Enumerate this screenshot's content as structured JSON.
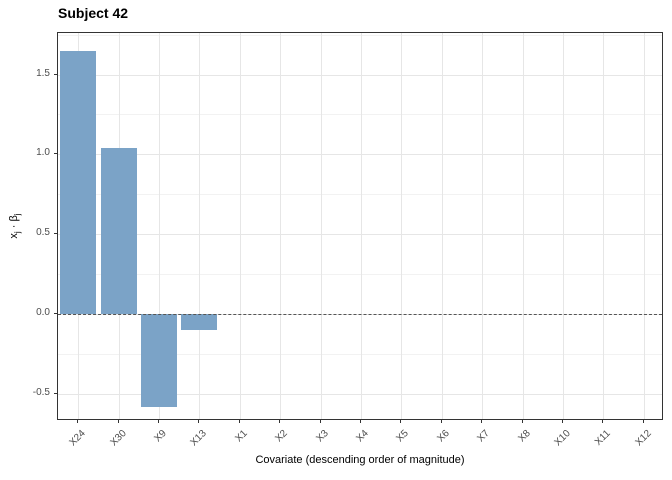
{
  "chart_data": {
    "type": "bar",
    "title": "Subject 42",
    "xlabel": "Covariate (descending order of magnitude)",
    "ylabel": "x_j · β_j",
    "ylabel_parts": [
      {
        "t": "x",
        "sub": false
      },
      {
        "t": "j",
        "sub": true
      },
      {
        "t": " · ",
        "sub": false
      },
      {
        "t": "β",
        "sub": false
      },
      {
        "t": "j",
        "sub": true
      }
    ],
    "categories": [
      "X24",
      "X30",
      "X9",
      "X13",
      "X1",
      "X2",
      "X3",
      "X4",
      "X5",
      "X6",
      "X7",
      "X8",
      "X10",
      "X11",
      "X12"
    ],
    "values": [
      1.65,
      1.04,
      -0.58,
      -0.1,
      0,
      0,
      0,
      0,
      0,
      0,
      0,
      0,
      0,
      0,
      0
    ],
    "y_ticks": [
      1.5,
      1.0,
      0.5,
      0.0,
      -0.5
    ],
    "y_tick_labels": [
      "1.5",
      "1.0",
      "0.5",
      "0.0",
      "-0.5"
    ],
    "ylim": [
      -0.67,
      1.76
    ],
    "grid": "on",
    "legend": "none",
    "zero_line": "dashed",
    "bar_width_fraction": 0.9,
    "colors": {
      "bar": "#7BA3C7",
      "panel_border": "#333333",
      "grid_major": "#E6E6E6",
      "grid_minor": "#F2F2F2",
      "dashed_line": "#555555",
      "tick_mark": "#333333",
      "tick_label": "#4D4D4D",
      "title": "#000000"
    }
  }
}
